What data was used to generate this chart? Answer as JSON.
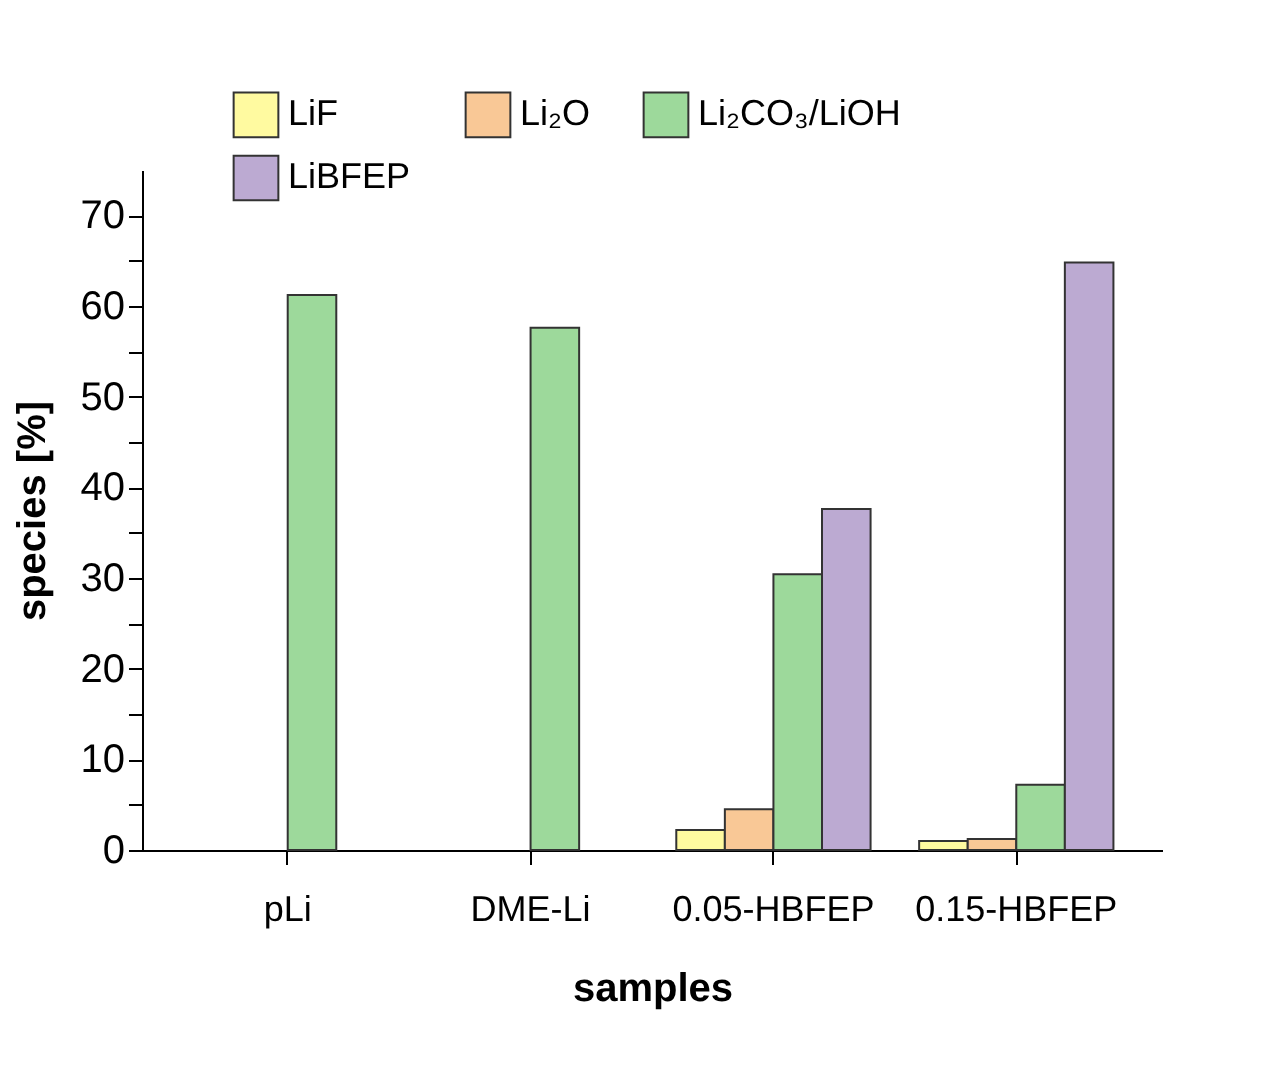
{
  "chart_data": {
    "type": "bar",
    "xlabel": "samples",
    "ylabel": "species [%]",
    "categories": [
      "pLi",
      "DME-Li",
      "0.05-HBFEP",
      "0.15-HBFEP"
    ],
    "series": [
      {
        "name": "LiF",
        "color": "#fffaa0",
        "values": [
          null,
          null,
          2.2,
          1.0
        ]
      },
      {
        "name": "Li₂O",
        "color": "#f9c896",
        "values": [
          null,
          null,
          4.5,
          1.2
        ]
      },
      {
        "name": "Li₂CO₃/LiOH",
        "color": "#9dd99b",
        "values": [
          61.2,
          57.6,
          30.4,
          7.2
        ]
      },
      {
        "name": "LiBFEP",
        "color": "#bcaad2",
        "values": [
          null,
          null,
          37.6,
          64.8
        ]
      }
    ],
    "ylim": [
      0,
      75
    ],
    "yticks": [
      0,
      {
        "value": 5,
        "label": null
      },
      10,
      {
        "value": 15,
        "label": null
      },
      20,
      {
        "value": 25,
        "label": null
      },
      30,
      {
        "value": 35,
        "label": null
      },
      40,
      {
        "value": 45,
        "label": null
      },
      50,
      {
        "value": 55,
        "label": null
      },
      60,
      {
        "value": 65,
        "label": null
      },
      70
    ],
    "grid": false,
    "legend": "top"
  }
}
